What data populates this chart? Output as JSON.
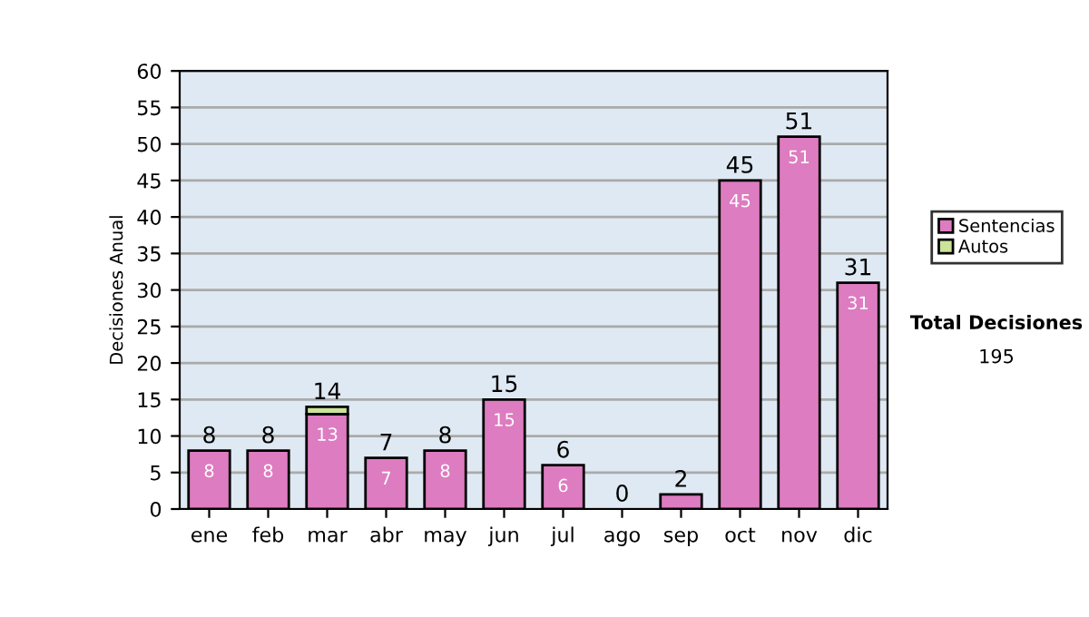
{
  "chart_data": {
    "type": "bar",
    "ylabel": "Decisiones Anual",
    "categories": [
      "ene",
      "feb",
      "mar",
      "abr",
      "may",
      "jun",
      "jul",
      "ago",
      "sep",
      "oct",
      "nov",
      "dic"
    ],
    "series": [
      {
        "name": "Sentencias",
        "color": "#dd7cc0",
        "values": [
          8,
          8,
          13,
          7,
          8,
          15,
          6,
          0,
          2,
          45,
          51,
          31
        ],
        "value_labels": [
          "8",
          "8",
          "13",
          "7",
          "8",
          "15",
          "6",
          null,
          null,
          "45",
          "51",
          "31"
        ]
      },
      {
        "name": "Autos",
        "color": "#cce498",
        "values": [
          0,
          0,
          1,
          0,
          0,
          0,
          0,
          0,
          0,
          0,
          0,
          0
        ]
      }
    ],
    "stacked": true,
    "totals": [
      "8",
      "8",
      "14",
      "7",
      "8",
      "15",
      "6",
      "0",
      "2",
      "45",
      "51",
      "31"
    ],
    "ylim": [
      0,
      60
    ],
    "yticks": [
      0,
      5,
      10,
      15,
      20,
      25,
      30,
      35,
      40,
      45,
      50,
      55,
      60
    ],
    "grid": "y",
    "legend": "right",
    "annotations": [
      "Total Decisiones",
      "195"
    ]
  }
}
